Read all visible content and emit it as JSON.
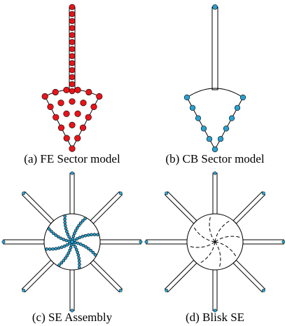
{
  "panels": [
    {
      "caption": "(a) FE Sector model"
    },
    {
      "caption": "(b) CB Sector model"
    },
    {
      "caption": "(c) SE Assembly"
    },
    {
      "caption": "(d) Blisk SE"
    }
  ]
}
